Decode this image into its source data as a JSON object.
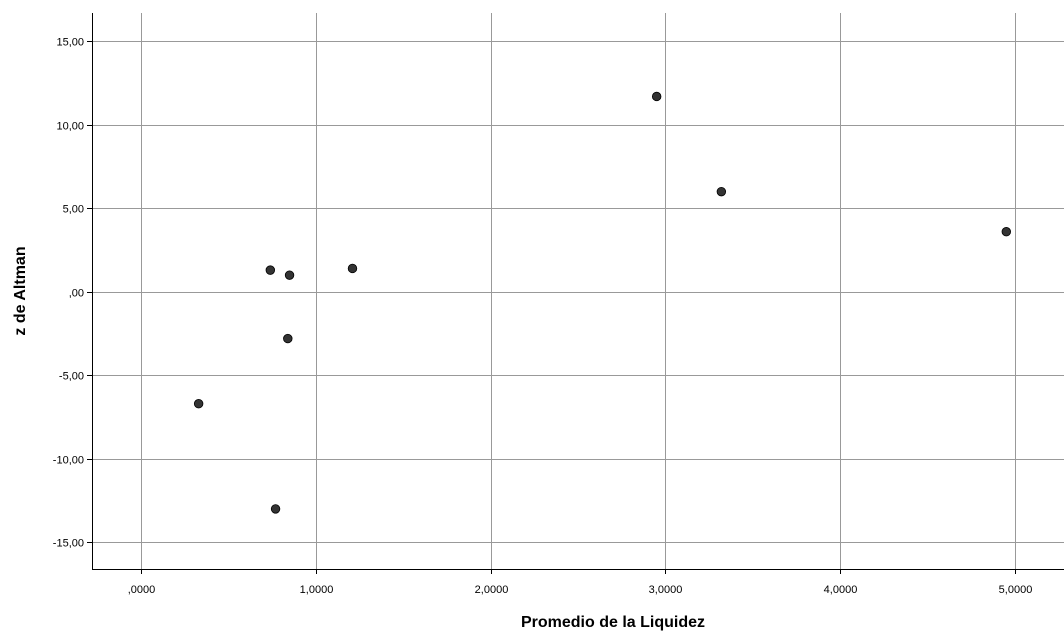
{
  "chart_data": {
    "type": "scatter",
    "title": "",
    "xlabel": "Promedio de la Liquidez",
    "ylabel": "z de Altman",
    "xlim": [
      -0.28,
      5.28
    ],
    "ylim": [
      -16.6,
      16.7
    ],
    "x_ticks": [
      0,
      1,
      2,
      3,
      4,
      5
    ],
    "x_tick_labels": [
      ",0000",
      "1,0000",
      "2,0000",
      "3,0000",
      "4,0000",
      "5,0000"
    ],
    "y_ticks": [
      15,
      10,
      5,
      0,
      -5,
      -10,
      -15
    ],
    "y_tick_labels": [
      "15,00",
      "10,00",
      "5,00",
      ",00",
      "-5,00",
      "-10,00",
      "-15,00"
    ],
    "grid": true,
    "colors": {
      "point": "#333333",
      "grid": "#999999",
      "axis": "#000000"
    },
    "points": [
      {
        "x": 0.33,
        "y": -6.7
      },
      {
        "x": 0.74,
        "y": 1.3
      },
      {
        "x": 0.77,
        "y": -13.0
      },
      {
        "x": 0.84,
        "y": -2.8
      },
      {
        "x": 0.85,
        "y": 1.0
      },
      {
        "x": 1.21,
        "y": 1.4
      },
      {
        "x": 2.95,
        "y": 11.7
      },
      {
        "x": 3.32,
        "y": 6.0
      },
      {
        "x": 4.95,
        "y": 3.6
      }
    ]
  }
}
